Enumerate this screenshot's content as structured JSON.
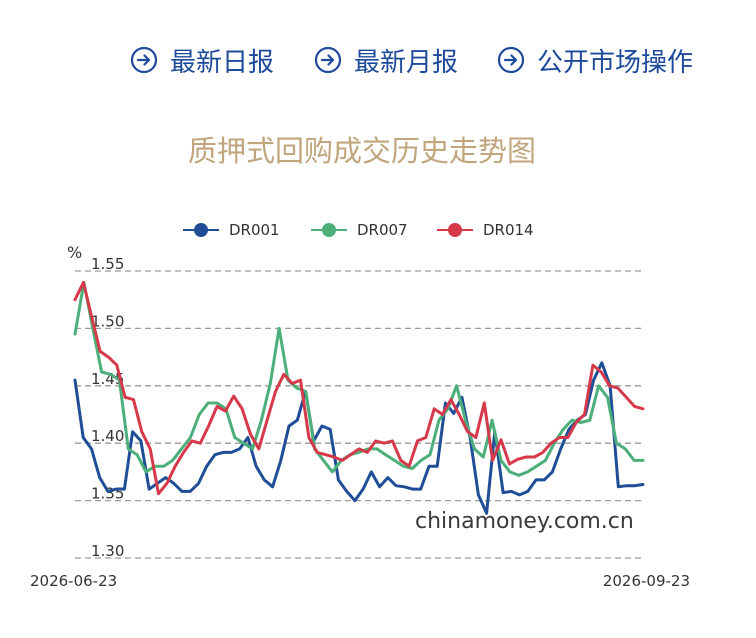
{
  "nav": {
    "items": [
      {
        "label": "最新日报",
        "icon": "arrow-circle-right-icon"
      },
      {
        "label": "最新月报",
        "icon": "arrow-circle-right-icon"
      },
      {
        "label": "公开市场操作",
        "icon": "arrow-circle-right-icon"
      }
    ],
    "color": "#1e4a9a"
  },
  "chart_data": {
    "type": "line",
    "title": "质押式回购成交历史走势图",
    "ylabel": "%",
    "ylim": [
      1.3,
      1.55
    ],
    "yticks": [
      "1.55",
      "1.50",
      "1.45",
      "1.40",
      "1.35",
      "1.30"
    ],
    "x_start_label": "2026-06-23",
    "x_end_label": "2026-09-23",
    "legend_position": "top-center",
    "grid": "horizontal dashed",
    "watermark": "chinamoney.com.cn",
    "series": [
      {
        "name": "DR001",
        "color": "#1f4e96",
        "values": [
          1.455,
          1.405,
          1.395,
          1.37,
          1.358,
          1.36,
          1.36,
          1.41,
          1.402,
          1.36,
          1.365,
          1.37,
          1.365,
          1.358,
          1.358,
          1.365,
          1.38,
          1.39,
          1.392,
          1.392,
          1.395,
          1.405,
          1.38,
          1.368,
          1.362,
          1.385,
          1.415,
          1.42,
          1.445,
          1.402,
          1.415,
          1.412,
          1.368,
          1.358,
          1.35,
          1.36,
          1.375,
          1.362,
          1.37,
          1.363,
          1.362,
          1.36,
          1.36,
          1.38,
          1.38,
          1.435,
          1.426,
          1.44,
          1.405,
          1.355,
          1.339,
          1.41,
          1.357,
          1.358,
          1.355,
          1.358,
          1.368,
          1.368,
          1.375,
          1.395,
          1.412,
          1.42,
          1.425,
          1.455,
          1.47,
          1.45,
          1.362,
          1.363,
          1.363,
          1.364
        ]
      },
      {
        "name": "DR007",
        "color": "#4caf7a",
        "values": [
          1.495,
          1.54,
          1.5,
          1.462,
          1.46,
          1.455,
          1.395,
          1.39,
          1.375,
          1.38,
          1.38,
          1.385,
          1.395,
          1.405,
          1.425,
          1.435,
          1.435,
          1.43,
          1.405,
          1.4,
          1.395,
          1.42,
          1.452,
          1.5,
          1.455,
          1.448,
          1.445,
          1.395,
          1.385,
          1.375,
          1.385,
          1.39,
          1.392,
          1.395,
          1.395,
          1.39,
          1.385,
          1.38,
          1.378,
          1.385,
          1.39,
          1.42,
          1.43,
          1.45,
          1.42,
          1.395,
          1.388,
          1.42,
          1.385,
          1.375,
          1.372,
          1.375,
          1.38,
          1.385,
          1.4,
          1.412,
          1.42,
          1.418,
          1.42,
          1.45,
          1.44,
          1.4,
          1.395,
          1.385,
          1.385
        ]
      },
      {
        "name": "DR014",
        "color": "#d63a4a",
        "values": [
          1.525,
          1.54,
          1.51,
          1.48,
          1.475,
          1.468,
          1.44,
          1.438,
          1.41,
          1.395,
          1.356,
          1.365,
          1.38,
          1.392,
          1.402,
          1.4,
          1.415,
          1.432,
          1.428,
          1.441,
          1.43,
          1.408,
          1.395,
          1.42,
          1.445,
          1.46,
          1.452,
          1.455,
          1.405,
          1.392,
          1.39,
          1.388,
          1.385,
          1.39,
          1.395,
          1.392,
          1.402,
          1.4,
          1.402,
          1.385,
          1.38,
          1.402,
          1.405,
          1.43,
          1.425,
          1.438,
          1.425,
          1.41,
          1.405,
          1.435,
          1.385,
          1.403,
          1.382,
          1.386,
          1.388,
          1.388,
          1.392,
          1.4,
          1.405,
          1.405,
          1.418,
          1.425,
          1.468,
          1.462,
          1.45,
          1.448,
          1.44,
          1.432,
          1.43
        ]
      }
    ]
  }
}
